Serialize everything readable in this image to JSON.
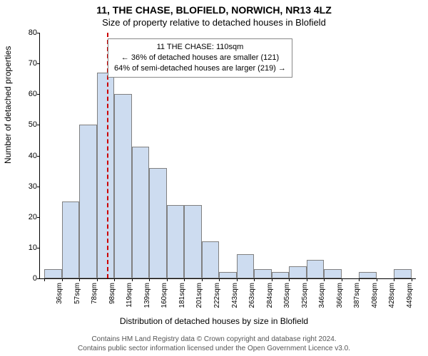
{
  "title_main": "11, THE CHASE, BLOFIELD, NORWICH, NR13 4LZ",
  "title_sub": "Size of property relative to detached houses in Blofield",
  "ylabel": "Number of detached properties",
  "xlabel_bottom": "Distribution of detached houses by size in Blofield",
  "chart": {
    "type": "histogram",
    "bar_fill": "#cddcf0",
    "bar_stroke": "#808080",
    "background_color": "#ffffff",
    "reference_line_color": "#cc0000",
    "reference_line_x_idx": 3.6,
    "ylim": [
      0,
      80
    ],
    "ytick_step": 10,
    "bar_width_ratio": 1.0,
    "xtick_labels": [
      "36sqm",
      "57sqm",
      "78sqm",
      "98sqm",
      "119sqm",
      "139sqm",
      "160sqm",
      "181sqm",
      "201sqm",
      "222sqm",
      "243sqm",
      "263sqm",
      "284sqm",
      "305sqm",
      "325sqm",
      "346sqm",
      "366sqm",
      "387sqm",
      "408sqm",
      "428sqm",
      "449sqm"
    ],
    "values": [
      3,
      25,
      50,
      67,
      60,
      43,
      36,
      24,
      24,
      12,
      2,
      8,
      3,
      2,
      4,
      6,
      3,
      0,
      2,
      0,
      3
    ]
  },
  "annotation": {
    "line1": "11 THE CHASE: 110sqm",
    "line2": "← 36% of detached houses are smaller (121)",
    "line3": "64% of semi-detached houses are larger (219) →"
  },
  "footer_line1": "Contains HM Land Registry data © Crown copyright and database right 2024.",
  "footer_line2": "Contains public sector information licensed under the Open Government Licence v3.0."
}
